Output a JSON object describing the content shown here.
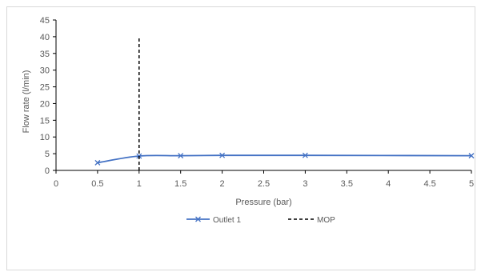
{
  "chart_data": {
    "type": "line",
    "title": "",
    "xlabel": "Pressure (bar)",
    "ylabel": "Flow rate (l/min)",
    "xlim": [
      0,
      5
    ],
    "ylim": [
      0,
      45
    ],
    "x_ticks": [
      "0",
      "0.5",
      "1",
      "1.5",
      "2",
      "2.5",
      "3",
      "3.5",
      "4",
      "4.5",
      "5"
    ],
    "y_ticks": [
      "0",
      "5",
      "10",
      "15",
      "20",
      "25",
      "30",
      "35",
      "40",
      "45"
    ],
    "grid": false,
    "legend_position": "bottom",
    "series": [
      {
        "name": "Outlet 1",
        "color": "#4472c4",
        "marker": "x",
        "x": [
          0.5,
          1,
          1.5,
          2,
          3,
          5
        ],
        "y": [
          2.3,
          4.3,
          4.4,
          4.5,
          4.5,
          4.4
        ]
      },
      {
        "name": "MOP",
        "color": "#000000",
        "style": "dashed",
        "x": [
          1,
          1
        ],
        "y": [
          0,
          40
        ]
      }
    ]
  }
}
